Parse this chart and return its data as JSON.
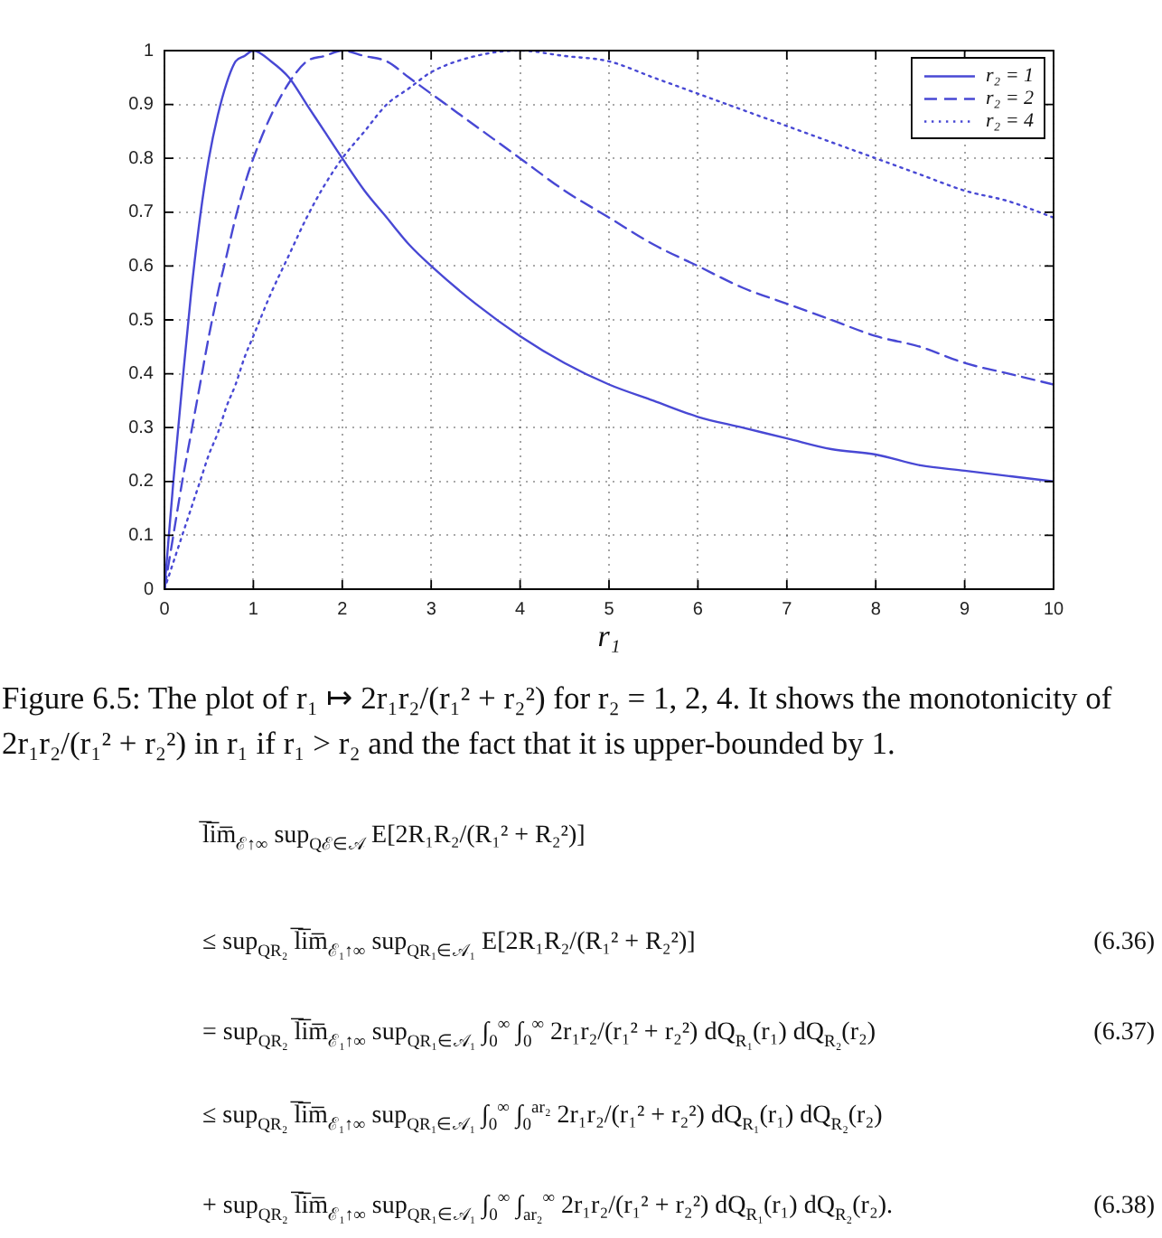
{
  "chart_data": {
    "type": "line",
    "xlabel": "r₁",
    "x": [
      0,
      0.1,
      0.2,
      0.3,
      0.4,
      0.5,
      0.6,
      0.7,
      0.8,
      0.9,
      1,
      1.2,
      1.4,
      1.6,
      1.8,
      2,
      2.25,
      2.5,
      2.75,
      3,
      3.5,
      4,
      4.5,
      5,
      5.5,
      6,
      6.5,
      7,
      7.5,
      8,
      8.5,
      9,
      9.5,
      10
    ],
    "series": [
      {
        "name": "r₂ = 1",
        "color": "#4848d4",
        "line_style": "solid",
        "values": [
          0,
          0.2,
          0.38,
          0.55,
          0.69,
          0.8,
          0.88,
          0.94,
          0.98,
          0.99,
          1,
          0.98,
          0.95,
          0.9,
          0.85,
          0.8,
          0.74,
          0.69,
          0.64,
          0.6,
          0.53,
          0.47,
          0.42,
          0.38,
          0.35,
          0.32,
          0.3,
          0.28,
          0.26,
          0.25,
          0.23,
          0.22,
          0.21,
          0.2
        ]
      },
      {
        "name": "r₂ = 2",
        "color": "#4848d4",
        "line_style": "dashed",
        "values": [
          0,
          0.1,
          0.2,
          0.29,
          0.38,
          0.47,
          0.55,
          0.62,
          0.69,
          0.75,
          0.8,
          0.88,
          0.94,
          0.98,
          0.99,
          1,
          0.99,
          0.98,
          0.95,
          0.92,
          0.86,
          0.8,
          0.74,
          0.69,
          0.64,
          0.6,
          0.56,
          0.53,
          0.5,
          0.47,
          0.45,
          0.42,
          0.4,
          0.38
        ]
      },
      {
        "name": "r₂ = 4",
        "color": "#4848d4",
        "line_style": "dotted",
        "values": [
          0,
          0.05,
          0.1,
          0.15,
          0.2,
          0.25,
          0.29,
          0.34,
          0.38,
          0.43,
          0.47,
          0.55,
          0.62,
          0.69,
          0.75,
          0.8,
          0.85,
          0.9,
          0.93,
          0.96,
          0.99,
          1,
          0.99,
          0.98,
          0.95,
          0.92,
          0.89,
          0.86,
          0.83,
          0.8,
          0.77,
          0.74,
          0.72,
          0.69
        ]
      }
    ],
    "xlim": [
      0,
      10
    ],
    "xticks": [
      0,
      1,
      2,
      3,
      4,
      5,
      6,
      7,
      8,
      9,
      10
    ],
    "ylim": [
      0,
      1
    ],
    "yticks": [
      0,
      0.1,
      0.2,
      0.3,
      0.4,
      0.5,
      0.6,
      0.7,
      0.8,
      0.9,
      1
    ],
    "grid": true,
    "legend": "top right",
    "annotations": [
      "Figure 6.5: The plot of r₁ ↦ 2r₁r₂/(r₁² + r₂²) for r₂ = 1, 2, 4. It shows the monotonicity of 2r₁r₂/(r₁² + r₂²) in r₁ if r₁ > r₂ and the fact that it is upper-bounded by 1.",
      "l̅i̅m̅$_{ℰ↑∞}$ sup$_{Qℰ∈𝒜}$ E[2R₁R₂/(R₁² + R₂²)]",
      "≤ sup$_{QR₂}$ l̅i̅m̅$_{ℰ₁↑∞}$ sup$_{QR₁∈𝒜₁}$ E[2R₁R₂/(R₁² + R₂²)]",
      "= sup$_{QR₂}$ l̅i̅m̅$_{ℰ₁↑∞}$ sup$_{QR₁∈𝒜₁}$ ∫$_{0}$$^{∞}$ ∫$_{0}$$^{∞}$ 2r₁r₂/(r₁² + r₂²) dQ$_{R₁}$(r₁) dQ$_{R₂}$(r₂)",
      "≤ sup$_{QR₂}$ l̅i̅m̅$_{ℰ₁↑∞}$ sup$_{QR₁∈𝒜₁}$ ∫$_{0}$$^{∞}$ ∫$_{0}$$^{ar₂}$ 2r₁r₂/(r₁² + r₂²) dQ$_{R₁}$(r₁) dQ$_{R₂}$(r₂)",
      "+ sup$_{QR₂}$ l̅i̅m̅$_{ℰ₁↑∞}$ sup$_{QR₁∈𝒜₁}$ ∫$_{0}$$^{∞}$ ∫$_{ar₂}$$^{∞}$ 2r₁r₂/(r₁² + r₂²) dQ$_{R₁}$(r₁) dQ$_{R₂}$(r₂).",
      "(6.36)",
      "(6.37)",
      "(6.38)"
    ]
  }
}
